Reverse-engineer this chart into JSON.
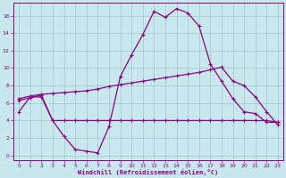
{
  "xlabel": "Windchill (Refroidissement éolien,°C)",
  "bg_color": "#c8e8ee",
  "grid_color": "#a0c8cc",
  "line_color": "#880088",
  "x_ticks": [
    0,
    1,
    2,
    3,
    4,
    5,
    6,
    7,
    8,
    9,
    10,
    11,
    12,
    13,
    14,
    15,
    16,
    17,
    18,
    19,
    20,
    21,
    22,
    23
  ],
  "y_ticks": [
    0,
    2,
    4,
    6,
    8,
    10,
    12,
    14,
    16
  ],
  "xlim": [
    -0.5,
    23.5
  ],
  "ylim": [
    -0.5,
    17.5
  ],
  "line1_x": [
    0,
    1,
    2,
    3,
    4,
    5,
    6,
    7,
    8,
    9,
    10,
    11,
    12,
    13,
    14,
    15,
    16,
    17,
    18,
    19,
    20,
    21,
    22,
    23
  ],
  "line1_y": [
    5.0,
    6.7,
    6.7,
    4.0,
    2.2,
    0.7,
    0.5,
    0.3,
    3.3,
    9.0,
    11.5,
    13.8,
    16.5,
    15.8,
    16.8,
    16.3,
    14.8,
    10.5,
    8.5,
    6.5,
    5.0,
    4.8,
    3.8,
    3.8
  ],
  "line2_x": [
    0,
    1,
    2,
    3,
    4,
    5,
    6,
    7,
    8,
    9,
    10,
    11,
    12,
    13,
    14,
    15,
    16,
    17,
    18,
    19,
    20,
    21,
    22,
    23
  ],
  "line2_y": [
    6.5,
    6.8,
    7.0,
    7.1,
    7.2,
    7.3,
    7.4,
    7.6,
    7.9,
    8.1,
    8.3,
    8.5,
    8.7,
    8.9,
    9.1,
    9.3,
    9.5,
    9.8,
    10.1,
    8.5,
    8.0,
    6.7,
    5.0,
    3.5
  ],
  "line3_x": [
    0,
    1,
    2,
    3,
    4,
    5,
    6,
    7,
    8,
    9,
    10,
    11,
    12,
    13,
    14,
    15,
    16,
    17,
    18,
    19,
    20,
    21,
    22,
    23
  ],
  "line3_y": [
    6.3,
    6.6,
    6.9,
    4.0,
    4.0,
    4.0,
    4.0,
    4.0,
    4.0,
    4.0,
    4.0,
    4.0,
    4.0,
    4.0,
    4.0,
    4.0,
    4.0,
    4.0,
    4.0,
    4.0,
    4.0,
    4.0,
    4.0,
    3.8
  ]
}
